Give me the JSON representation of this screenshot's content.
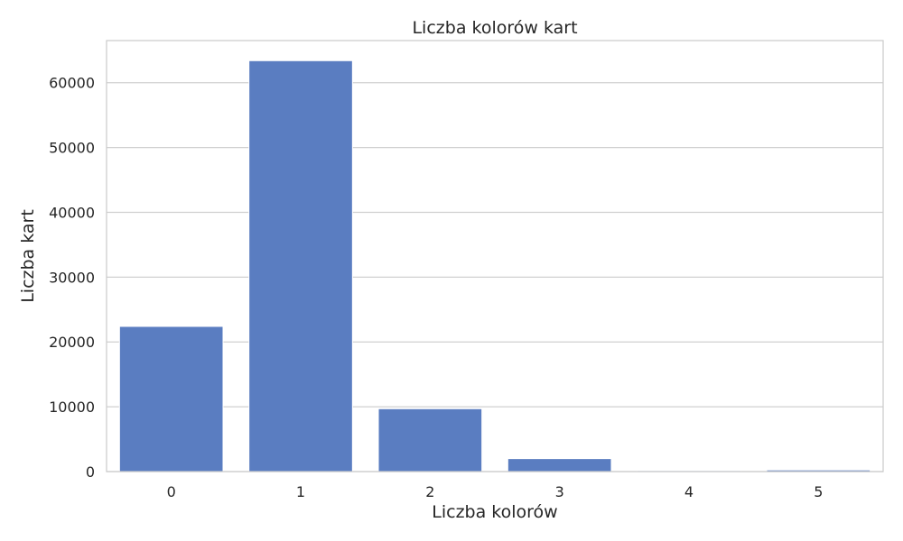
{
  "chart_data": {
    "type": "bar",
    "title": "Liczba kolorów kart",
    "xlabel": "Liczba kolorów",
    "ylabel": "Liczba kart",
    "categories": [
      "0",
      "1",
      "2",
      "3",
      "4",
      "5"
    ],
    "values": [
      22400,
      63400,
      9700,
      2000,
      150,
      250
    ],
    "ylim": [
      0,
      66500
    ],
    "yticks": [
      0,
      10000,
      20000,
      30000,
      40000,
      50000,
      60000
    ],
    "grid": true,
    "bar_color": "#5a7dc1",
    "grid_color": "#d0d0d0"
  }
}
